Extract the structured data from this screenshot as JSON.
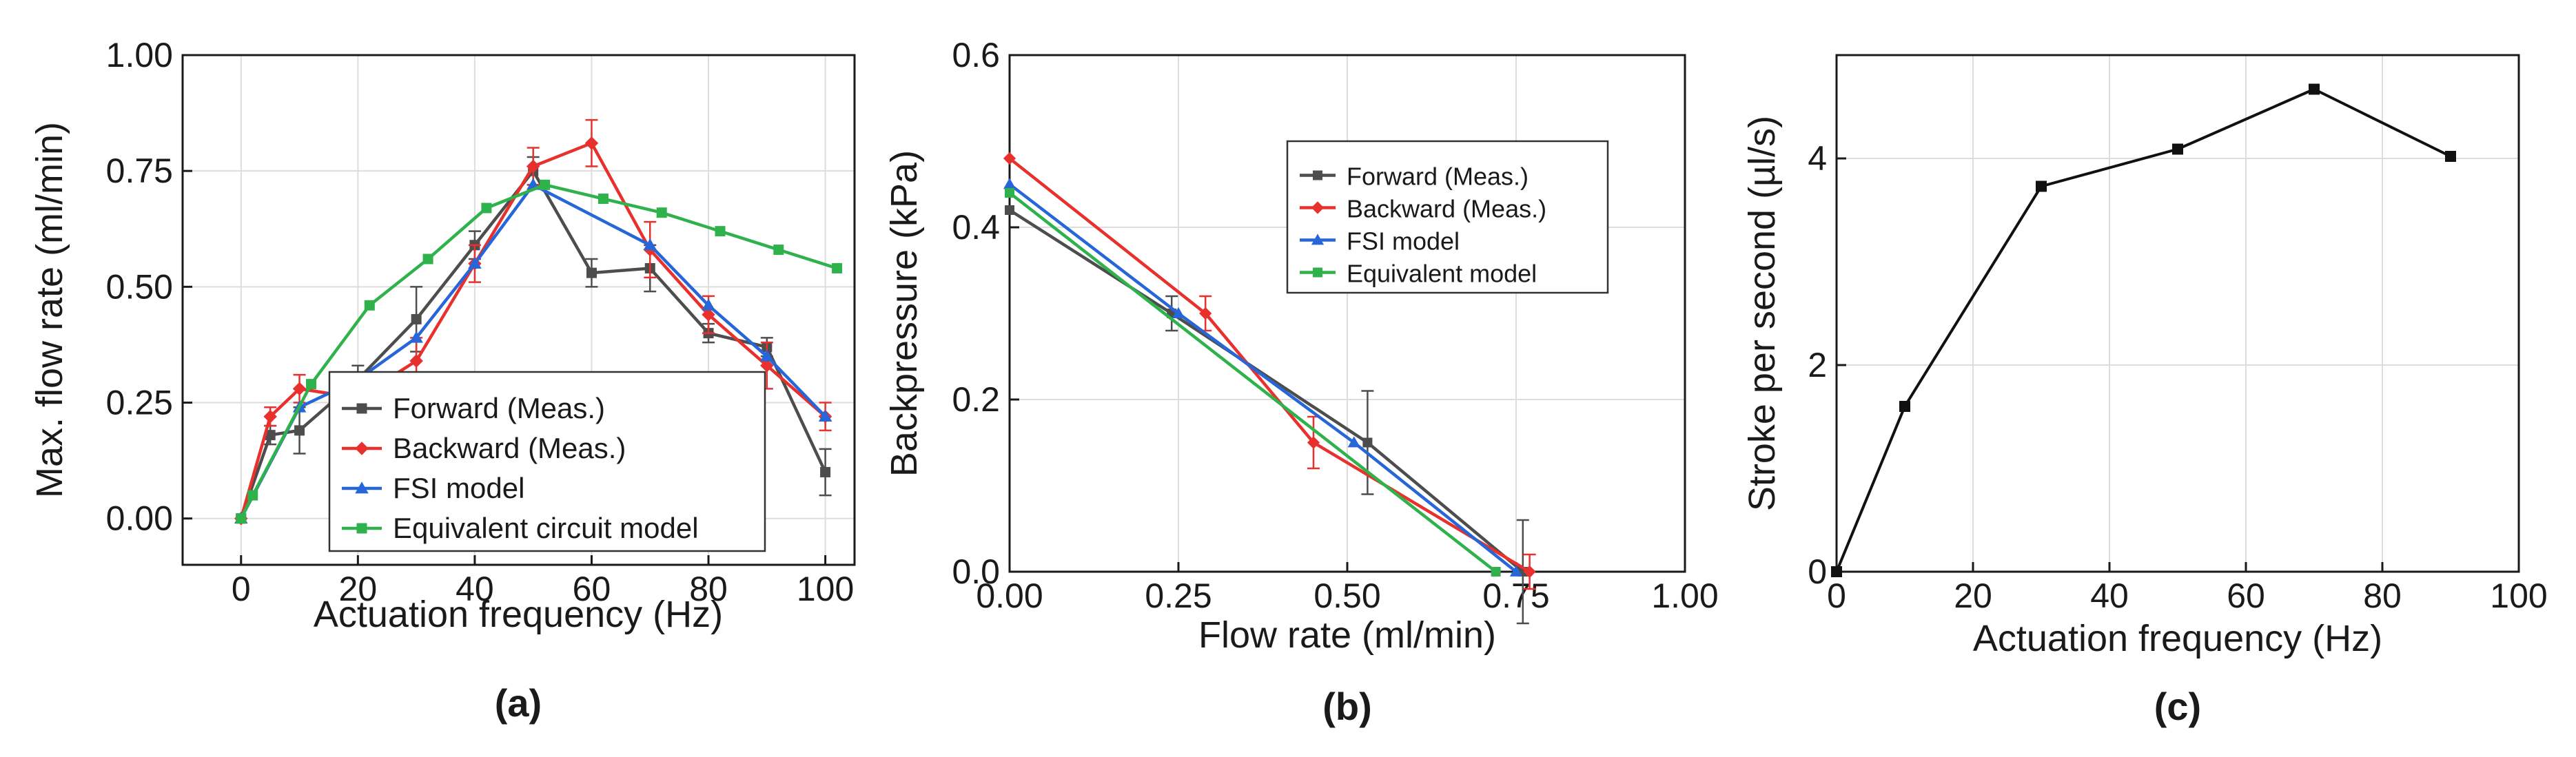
{
  "figure": {
    "panels": [
      "(a)",
      "(b)",
      "(c)"
    ]
  },
  "chart_data": [
    {
      "id": "a",
      "type": "line",
      "panel_label": "(a)",
      "xlabel": "Actuation frequency (Hz)",
      "ylabel": "Max. flow rate (ml/min)",
      "xlim": [
        -10,
        105
      ],
      "ylim": [
        -0.1,
        1.0
      ],
      "xticks": [
        0,
        20,
        40,
        60,
        80,
        100
      ],
      "xtick_labels": [
        "0",
        "20",
        "40",
        "60",
        "80",
        "100"
      ],
      "yticks": [
        0,
        0.25,
        0.5,
        0.75,
        1.0
      ],
      "ytick_labels": [
        "0.00",
        "0.25",
        "0.50",
        "0.75",
        "1.00"
      ],
      "grid": true,
      "legend_position": "bottom-center",
      "series": [
        {
          "name": "Forward (Meas.)",
          "color": "#4d4d4d",
          "marker": "square",
          "x": [
            0,
            5,
            10,
            20,
            30,
            40,
            50,
            60,
            70,
            80,
            90,
            100
          ],
          "y": [
            0.0,
            0.18,
            0.19,
            0.3,
            0.43,
            0.59,
            0.75,
            0.53,
            0.54,
            0.4,
            0.37,
            0.1
          ],
          "err": [
            0,
            0.02,
            0.05,
            0.03,
            0.07,
            0.03,
            0.03,
            0.03,
            0.05,
            0.02,
            0.02,
            0.05
          ]
        },
        {
          "name": "Backward (Meas.)",
          "color": "#e8302c",
          "marker": "diamond",
          "x": [
            0,
            5,
            10,
            20,
            30,
            40,
            50,
            60,
            70,
            80,
            90,
            100
          ],
          "y": [
            0.0,
            0.22,
            0.28,
            0.26,
            0.34,
            0.55,
            0.76,
            0.81,
            0.58,
            0.44,
            0.33,
            0.22
          ],
          "err": [
            0,
            0.02,
            0.03,
            0.02,
            0.05,
            0.04,
            0.04,
            0.05,
            0.06,
            0.04,
            0.05,
            0.03
          ]
        },
        {
          "name": "FSI model",
          "color": "#2766d8",
          "marker": "triangle",
          "x": [
            0,
            10,
            20,
            30,
            40,
            50,
            70,
            80,
            90,
            100
          ],
          "y": [
            0.0,
            0.24,
            0.3,
            0.39,
            0.55,
            0.72,
            0.59,
            0.46,
            0.35,
            0.22
          ]
        },
        {
          "name": "Equivalent circuit model",
          "color": "#2fb24c",
          "marker": "square",
          "x": [
            0,
            2,
            12,
            22,
            32,
            42,
            52,
            62,
            72,
            82,
            92,
            102
          ],
          "y": [
            0.0,
            0.05,
            0.29,
            0.46,
            0.56,
            0.67,
            0.72,
            0.69,
            0.66,
            0.62,
            0.58,
            0.54
          ]
        }
      ]
    },
    {
      "id": "b",
      "type": "line",
      "panel_label": "(b)",
      "xlabel": "Flow rate (ml/min)",
      "ylabel": "Backpressure (kPa)",
      "xlim": [
        0,
        1.0
      ],
      "ylim": [
        0,
        0.6
      ],
      "xticks": [
        0,
        0.25,
        0.5,
        0.75,
        1.0
      ],
      "xtick_labels": [
        "0.00",
        "0.25",
        "0.50",
        "0.75",
        "1.00"
      ],
      "yticks": [
        0,
        0.2,
        0.4,
        0.6
      ],
      "ytick_labels": [
        "0.0",
        "0.2",
        "0.4",
        "0.6"
      ],
      "grid": true,
      "legend_position": "top-right",
      "series": [
        {
          "name": "Forward (Meas.)",
          "color": "#4d4d4d",
          "marker": "square",
          "x": [
            0.0,
            0.24,
            0.53,
            0.76
          ],
          "y": [
            0.42,
            0.3,
            0.15,
            0.0
          ],
          "err": [
            0,
            0.02,
            0.06,
            0.06
          ]
        },
        {
          "name": "Backward (Meas.)",
          "color": "#e8302c",
          "marker": "diamond",
          "x": [
            0.0,
            0.29,
            0.45,
            0.77
          ],
          "y": [
            0.48,
            0.3,
            0.15,
            0.0
          ],
          "err": [
            0,
            0.02,
            0.03,
            0.02
          ]
        },
        {
          "name": "FSI model",
          "color": "#2766d8",
          "marker": "triangle",
          "x": [
            0.0,
            0.25,
            0.51,
            0.75
          ],
          "y": [
            0.45,
            0.3,
            0.15,
            0.0
          ]
        },
        {
          "name": "Equivalent model",
          "color": "#2fb24c",
          "marker": "square",
          "x": [
            0.0,
            0.72
          ],
          "y": [
            0.44,
            0.0
          ]
        }
      ]
    },
    {
      "id": "c",
      "type": "line",
      "panel_label": "(c)",
      "xlabel": "Actuation frequency (Hz)",
      "ylabel": "Stroke per second (µl/s)",
      "xlim": [
        0,
        100
      ],
      "ylim": [
        0,
        5
      ],
      "xticks": [
        0,
        20,
        40,
        60,
        80,
        100
      ],
      "xtick_labels": [
        "0",
        "20",
        "40",
        "60",
        "80",
        "100"
      ],
      "yticks": [
        0,
        2,
        4
      ],
      "ytick_labels": [
        "0",
        "2",
        "4"
      ],
      "grid": true,
      "series": [
        {
          "name": "Stroke per second",
          "color": "#111111",
          "marker": "square",
          "x": [
            0,
            10,
            30,
            50,
            70,
            90
          ],
          "y": [
            0.0,
            1.6,
            3.73,
            4.09,
            4.67,
            4.02
          ]
        }
      ]
    }
  ]
}
